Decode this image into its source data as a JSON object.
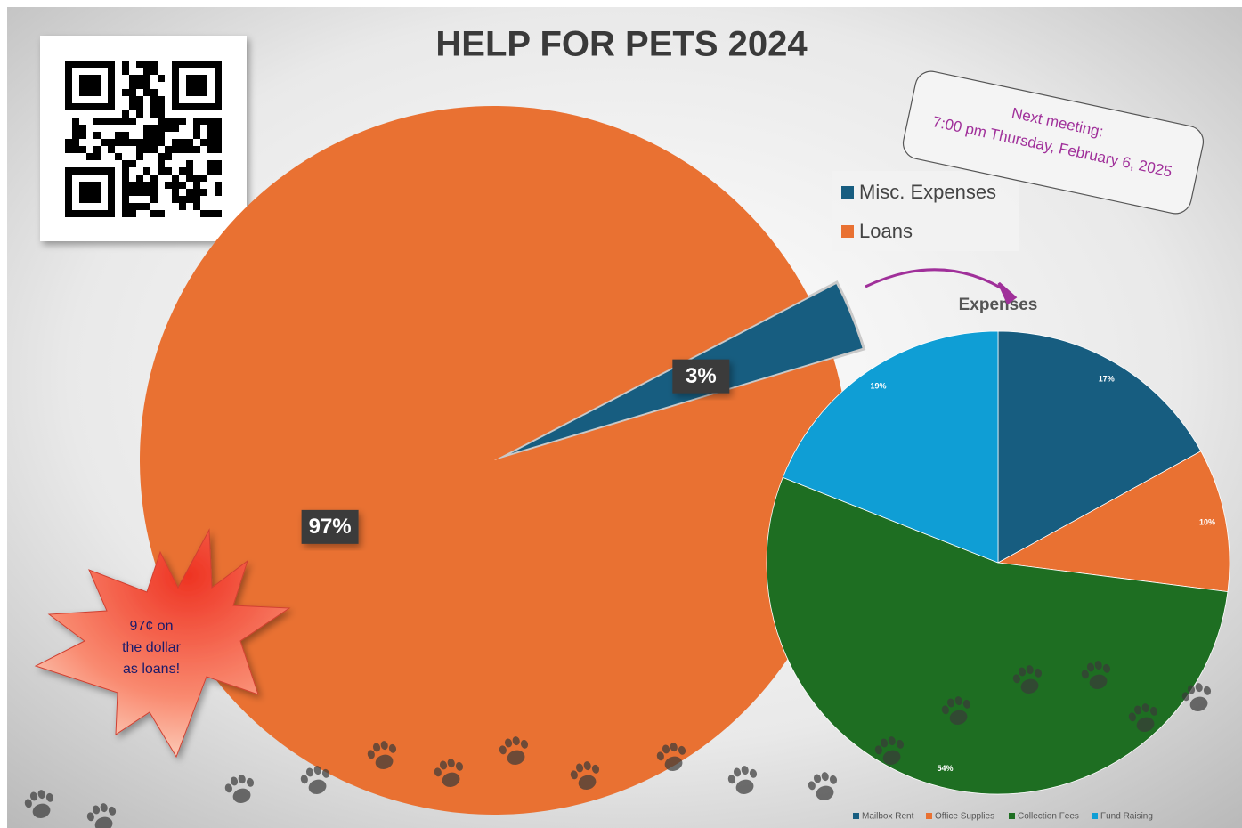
{
  "chart_data": [
    {
      "type": "pie",
      "title": "HELP FOR PETS 2024",
      "categories": [
        "Misc. Expenses",
        "Loans"
      ],
      "values": [
        3,
        97
      ],
      "value_labels": [
        "3%",
        "97%"
      ],
      "colors": [
        "#175d80",
        "#e97132"
      ],
      "legend": "top-right",
      "note": {
        "lines": [
          "Next meeting:",
          "7:00 pm Thursday, February 6, 2025"
        ]
      },
      "callout": {
        "lines": [
          "97¢ on",
          "the dollar",
          "as loans!"
        ]
      }
    },
    {
      "type": "pie",
      "title": "Expenses",
      "categories": [
        "Mailbox Rent",
        "Office Supplies",
        "Collection Fees",
        "Fund Raising"
      ],
      "values": [
        17,
        10,
        54,
        19
      ],
      "value_labels": [
        "17%",
        "10%",
        "54%",
        "19%"
      ],
      "colors": [
        "#175d80",
        "#e97132",
        "#1e6e22",
        "#0f9ed5"
      ],
      "legend": "bottom"
    }
  ]
}
